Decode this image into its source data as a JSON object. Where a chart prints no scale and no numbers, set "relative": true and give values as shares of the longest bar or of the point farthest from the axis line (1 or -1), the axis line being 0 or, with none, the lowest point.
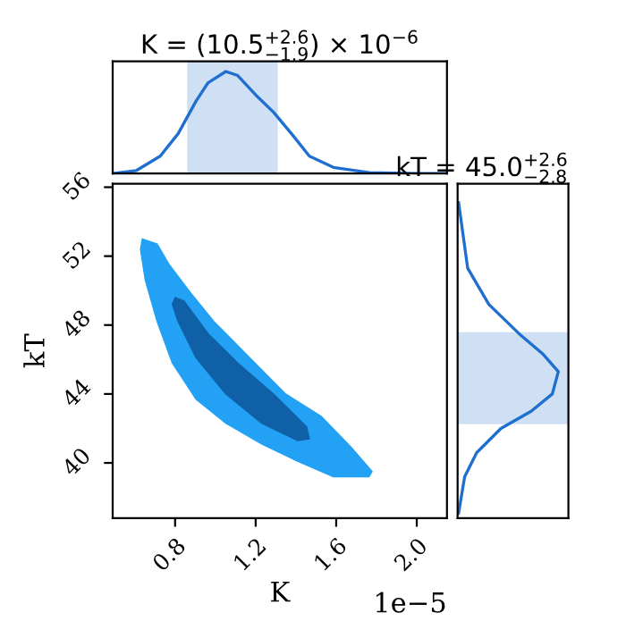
{
  "chart_data": [
    {
      "type": "line",
      "title": "K = (10.5$^{+2.6}$$_{−1.9}$) × 10$^{−6}$",
      "relative": true,
      "tick_labels": false,
      "xlim": [
        0.49,
        2.15
      ],
      "x": [
        0.49,
        0.608,
        0.726,
        0.815,
        0.904,
        0.964,
        1.052,
        1.111,
        1.2,
        1.289,
        1.378,
        1.467,
        1.586,
        1.764,
        2.0,
        2.148
      ],
      "series": [
        {
          "color": "#1f6fd0",
          "values": [
            0,
            0.03,
            0.17,
            0.39,
            0.71,
            0.89,
            1,
            0.96,
            0.77,
            0.6,
            0.39,
            0.17,
            0.06,
            0.01,
            0,
            0
          ]
        }
      ],
      "bands": [
        {
          "axis": "x",
          "from": 0.86,
          "to": 1.31,
          "color": "#cfe0f5"
        }
      ]
    },
    {
      "type": "area",
      "xlabel": "K",
      "ylabel": "kT",
      "xlim": [
        0.49,
        2.15
      ],
      "ylim": [
        36.8,
        56.2
      ],
      "xticks": [
        0.8,
        1.2,
        1.6,
        {
          "value": 2.0,
          "label": "2.0"
        }
      ],
      "yticks": [
        40,
        44,
        48,
        52,
        56
      ],
      "annotations": [
        "1e−5"
      ],
      "series": [
        {
          "color": "#22a1f5",
          "x": [
            0.637,
            0.711,
            0.771,
            0.875,
            0.993,
            1.171,
            1.349,
            1.526,
            1.675,
            1.778,
            1.763,
            1.586,
            1.408,
            1.23,
            1.052,
            0.904,
            0.786,
            0.711,
            0.652,
            0.628
          ],
          "values": [
            53.0,
            52.7,
            51.5,
            49.9,
            48.2,
            46.1,
            44.0,
            42.7,
            40.9,
            39.5,
            39.2,
            39.2,
            40.1,
            41.1,
            42.3,
            43.7,
            45.8,
            48.2,
            50.6,
            52.4
          ]
        },
        {
          "color": "#1060a8",
          "x": [
            0.8,
            0.844,
            0.964,
            1.111,
            1.289,
            1.453,
            1.467,
            1.408,
            1.23,
            1.052,
            0.904,
            0.815,
            0.786
          ],
          "values": [
            49.6,
            49.4,
            47.5,
            45.8,
            44.0,
            42.1,
            41.4,
            41.3,
            42.3,
            44.0,
            46.1,
            48.2,
            49.2
          ]
        }
      ]
    },
    {
      "type": "line",
      "title": "kT = 45.0$^{+2.6}$$_{−2.8}$",
      "orientation": "horizontal",
      "relative": true,
      "tick_labels": false,
      "ylim": [
        36.8,
        56.2
      ],
      "x": [
        55.1,
        51.3,
        49.2,
        47.5,
        46.3,
        45.3,
        44.0,
        43.0,
        42.0,
        40.6,
        39.2,
        37.1
      ],
      "series": [
        {
          "color": "#1f6fd0",
          "values": [
            0.01,
            0.1,
            0.31,
            0.61,
            0.85,
            1,
            0.94,
            0.73,
            0.43,
            0.19,
            0.07,
            0.01
          ]
        }
      ],
      "bands": [
        {
          "axis": "y",
          "from": 42.25,
          "to": 47.58,
          "color": "#cfe0f5"
        }
      ]
    }
  ]
}
